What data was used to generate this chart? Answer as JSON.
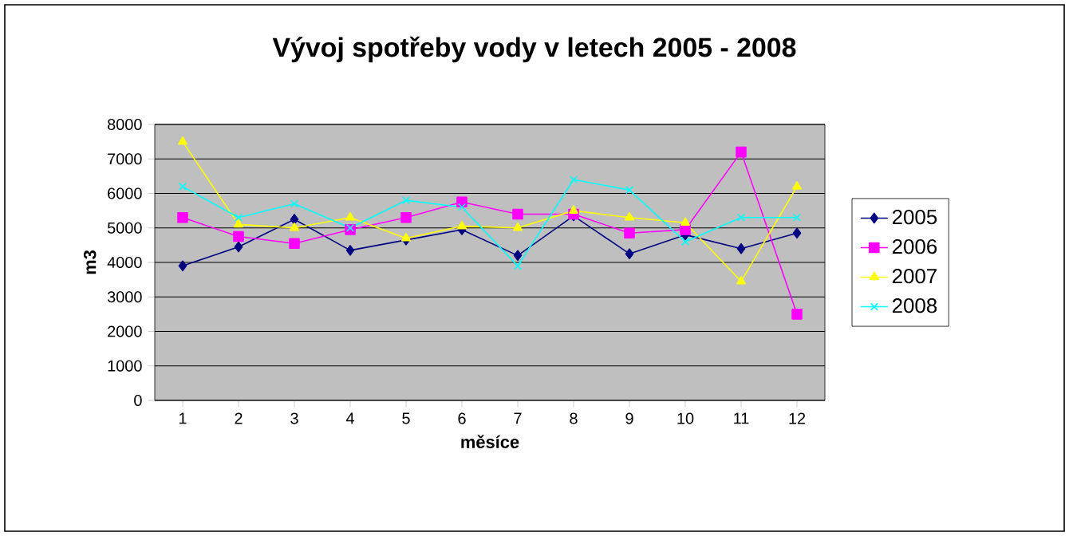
{
  "chart_data": {
    "type": "line",
    "title": "Vývoj spotřeby vody v letech 2005 - 2008",
    "xlabel": "měsíce",
    "ylabel": "m3",
    "categories": [
      "1",
      "2",
      "3",
      "4",
      "5",
      "6",
      "7",
      "8",
      "9",
      "10",
      "11",
      "12"
    ],
    "ylim": [
      0,
      8000
    ],
    "yticks": [
      0,
      1000,
      2000,
      3000,
      4000,
      5000,
      6000,
      7000,
      8000
    ],
    "grid": "y",
    "legend": "right",
    "series": [
      {
        "name": "2005",
        "color": "#000080",
        "marker": "diamond",
        "values": [
          3900,
          4450,
          5250,
          4350,
          4650,
          4950,
          4200,
          5350,
          4250,
          4800,
          4400,
          4850
        ]
      },
      {
        "name": "2006",
        "color": "#ff00ff",
        "marker": "square",
        "values": [
          5300,
          4750,
          4550,
          4950,
          5300,
          5750,
          5400,
          5400,
          4850,
          4950,
          7200,
          2500
        ]
      },
      {
        "name": "2007",
        "color": "#ffff00",
        "marker": "triangle",
        "values": [
          7500,
          5100,
          5000,
          5300,
          4700,
          5050,
          5000,
          5500,
          5300,
          5150,
          3450,
          6200
        ]
      },
      {
        "name": "2008",
        "color": "#00ffff",
        "marker": "cross",
        "values": [
          6200,
          5300,
          5700,
          5000,
          5800,
          5600,
          3900,
          6400,
          6100,
          4600,
          5300,
          5300
        ]
      }
    ]
  }
}
